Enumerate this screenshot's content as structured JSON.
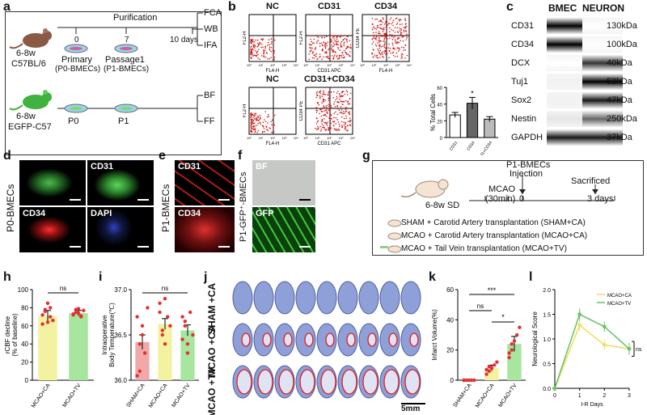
{
  "panels": {
    "a": {
      "label": "a",
      "purification": "Purification",
      "days": [
        "0",
        "7",
        "10 days"
      ],
      "mouse1": [
        "6-8w",
        "C57BL/6"
      ],
      "mouse2": [
        "6-8w",
        "EGFP-C57"
      ],
      "primary": [
        "Primary",
        "(P0-BMECs)"
      ],
      "passage": [
        "Passage1",
        "(P1-BMECs)"
      ],
      "p0": "P0",
      "p1": "P1",
      "outputs1": [
        "FCA",
        "WB",
        "IFA"
      ],
      "outputs2": [
        "BF",
        "FF"
      ],
      "colors": {
        "mouse1": "#8a5a44",
        "mouse2": "#3fb23f",
        "dish": "#9bd3e8",
        "cells": "#d25fa0"
      }
    },
    "b": {
      "label": "b",
      "plots": [
        {
          "title": "NC",
          "xlab": "FL4-H",
          "ylab": "FL2-H"
        },
        {
          "title": "CD31",
          "xlab": "CD31 APC",
          "ylab": "FL2-H"
        },
        {
          "title": "CD34",
          "xlab": "FL4-H",
          "ylab": "CD34 PE"
        },
        {
          "title": "NC",
          "xlab": "FL4-H",
          "ylab": "FL2-H"
        },
        {
          "title": "CD31+CD34",
          "xlab": "CD31 APC",
          "ylab": "CD34 PE"
        }
      ],
      "ticks": [
        "10⁰",
        "10¹",
        "10²",
        "10³",
        "10⁴"
      ],
      "bar_ylabel": "% Total Cells",
      "bar_yticks": [
        "0",
        "20",
        "40",
        "60"
      ],
      "bar_cats": [
        "CD31",
        "CD34",
        "CD31+CD34"
      ],
      "bar_star": "*"
    },
    "c": {
      "label": "c",
      "col1": "BMEC",
      "col2": "NEURON",
      "rows": [
        {
          "name": "CD31",
          "kda": "130kDa"
        },
        {
          "name": "CD34",
          "kda": "100kDa"
        },
        {
          "name": "DCX",
          "kda": "40kDa"
        },
        {
          "name": "Tuj1",
          "kda": "52kDa"
        },
        {
          "name": "Sox2",
          "kda": "47kDa"
        },
        {
          "name": "Nestin",
          "kda": "250kDa"
        },
        {
          "name": "GAPDH",
          "kda": "37kDa"
        }
      ]
    },
    "d": {
      "label": "d",
      "side": "P0-BMECs",
      "tiles": [
        "",
        "CD31",
        "CD34",
        "DAPI"
      ]
    },
    "e": {
      "label": "e",
      "side": "P1-BMECs",
      "tiles": [
        "CD31",
        "CD34"
      ]
    },
    "f": {
      "label": "f",
      "side": "P1-GFP⁺-BMECs",
      "tiles": [
        "BF",
        "GFP"
      ]
    },
    "g": {
      "label": "g",
      "mouse": "6-8w SD",
      "mcao": [
        "MCAO",
        "(30min)"
      ],
      "t0": "0",
      "injection": [
        "P1-BMECs",
        "Injection"
      ],
      "sacrificed": "Sacrificed",
      "t3": "3 days",
      "groups": [
        "SHAM + Carotid Artery transplantation (SHAM+CA)",
        "MCAO + Carotid Artery transplantation (MCAO+CA)",
        "MCAO + Tail Vein transplantation (MCAO+TV)"
      ]
    },
    "h": {
      "label": "h",
      "ylabel": [
        "rCBF decline",
        "(% of baseline)"
      ],
      "yticks": [
        "0",
        "20",
        "40",
        "60",
        "80",
        "100"
      ],
      "cats": [
        "MCAO+CA",
        "MCAO+TV"
      ],
      "sig": "ns"
    },
    "i": {
      "label": "i",
      "ylabel": [
        "Intraoperative",
        "Body Temperature(℃)"
      ],
      "yticks": [
        "36.0",
        "36.5",
        "37.0"
      ],
      "cats": [
        "SHAM+CA",
        "MCAO+CA",
        "MCAO+TV"
      ],
      "sig": "ns"
    },
    "j": {
      "label": "j",
      "rows": [
        [
          "SHAM",
          "+CA"
        ],
        [
          "MCAO",
          "+CA"
        ],
        [
          "MCAO",
          "+TV"
        ]
      ],
      "scale": "5mm"
    },
    "k": {
      "label": "k",
      "ylabel": "Infarct Volume(%)",
      "yticks": [
        "0",
        "20",
        "40",
        "60"
      ],
      "cats": [
        "SHAM+CA",
        "MCAO+CA",
        "MCAO+TV"
      ],
      "sig": [
        "***",
        "ns",
        "*"
      ]
    },
    "l": {
      "label": "l",
      "ylabel": "Neurological Score",
      "xlabel": "I-R Days",
      "yticks": [
        "0.0",
        "0.5",
        "1.0",
        "1.5",
        "2.0"
      ],
      "xticks": [
        "0",
        "1",
        "2",
        "3"
      ],
      "legend": [
        "MCAO+CA",
        "MCAO+TV"
      ],
      "sig": "ns"
    }
  },
  "chart_data": [
    {
      "type": "bar",
      "panel": "b",
      "categories": [
        "CD31",
        "CD34",
        "CD31+CD34"
      ],
      "values": [
        27,
        41,
        22
      ],
      "errors": [
        3,
        7,
        3
      ],
      "ylabel": "% Total Cells",
      "ylim": [
        0,
        60
      ],
      "colors": [
        "#ffffff",
        "#666666",
        "#bbbbbb"
      ]
    },
    {
      "type": "bar",
      "panel": "h",
      "categories": [
        "MCAO+CA",
        "MCAO+TV"
      ],
      "values": [
        71,
        74
      ],
      "errors": [
        6,
        3
      ],
      "points": [
        [
          62,
          78,
          85,
          70,
          66,
          72,
          76,
          64,
          80
        ],
        [
          72,
          78,
          74,
          71,
          77,
          73,
          75,
          79,
          70
        ]
      ],
      "ylabel": "rCBF decline (% of baseline)",
      "ylim": [
        0,
        100
      ],
      "colors": [
        "#f3f2a0",
        "#a8e6a0"
      ]
    },
    {
      "type": "bar",
      "panel": "i",
      "categories": [
        "SHAM+CA",
        "MCAO+CA",
        "MCAO+TV"
      ],
      "values": [
        36.42,
        36.62,
        36.55
      ],
      "errors": [
        0.08,
        0.06,
        0.06
      ],
      "points": [
        [
          36.7,
          36.1,
          36.6,
          36.3,
          36.8,
          36.05,
          36.4,
          36.5
        ],
        [
          36.85,
          36.5,
          36.4,
          36.7,
          36.6,
          36.75,
          36.55,
          36.9
        ],
        [
          36.45,
          36.65,
          36.3,
          36.75,
          36.5,
          36.7,
          36.6,
          36.4
        ]
      ],
      "ylabel": "Intraoperative Body Temperature(℃)",
      "ylim": [
        36.0,
        37.0
      ],
      "colors": [
        "#f2a8a8",
        "#f3f2a0",
        "#a8e6a0"
      ]
    },
    {
      "type": "bar",
      "panel": "k",
      "categories": [
        "SHAM+CA",
        "MCAO+CA",
        "MCAO+TV"
      ],
      "values": [
        0,
        8,
        24
      ],
      "errors": [
        0.5,
        2,
        5
      ],
      "points": [
        [
          0,
          0,
          0,
          0,
          0,
          0
        ],
        [
          4,
          6,
          8,
          10,
          12,
          7,
          9
        ],
        [
          15,
          20,
          26,
          30,
          35,
          18,
          24
        ]
      ],
      "ylabel": "Infarct Volume(%)",
      "ylim": [
        0,
        60
      ],
      "colors": [
        "#f2a8a8",
        "#f3f2a0",
        "#a8e6a0"
      ]
    },
    {
      "type": "line",
      "panel": "l",
      "x": [
        0,
        1,
        2,
        3
      ],
      "series": [
        {
          "name": "MCAO+CA",
          "values": [
            0,
            1.28,
            0.88,
            0.8
          ],
          "errors": [
            0,
            0.12,
            0.1,
            0.12
          ],
          "color": "#f0e060"
        },
        {
          "name": "MCAO+TV",
          "values": [
            0,
            1.5,
            1.25,
            0.8
          ],
          "errors": [
            0,
            0.12,
            0.1,
            0.12
          ],
          "color": "#6cc46c"
        }
      ],
      "xlabel": "I-R Days",
      "ylabel": "Neurological Score",
      "ylim": [
        0,
        2.0
      ]
    }
  ]
}
